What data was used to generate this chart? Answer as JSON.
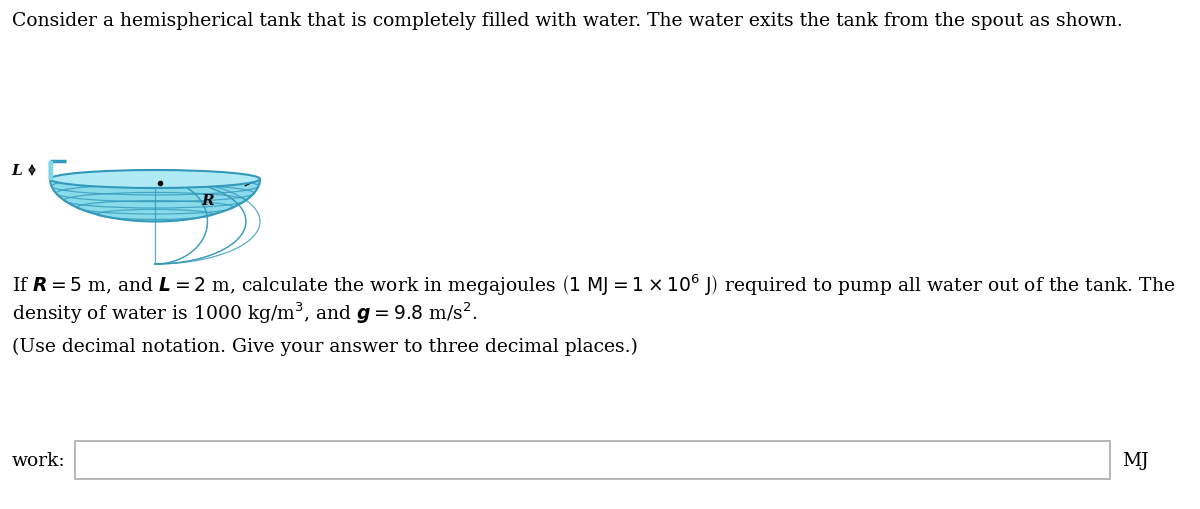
{
  "title_text": "Consider a hemispherical tank that is completely filled with water. The water exits the tank from the spout as shown.",
  "problem_line1": "If $\\boldsymbol{R} = 5$ m, and $\\boldsymbol{L} = 2$ m, calculate the work in megajoules $\\left(1\\text{ MJ} = 1 \\times 10^6\\text{ J}\\right)$ required to pump all water out of the tank. The",
  "problem_line2": "density of water is 1000 kg/m$^3$, and $\\boldsymbol{g} = 9.8$ m/s$^2$.",
  "notation_text": "(Use decimal notation. Give your answer to three decimal places.)",
  "work_label": "work:",
  "unit_label": "MJ",
  "bg_color": "#ffffff",
  "text_color": "#000000",
  "box_edge_color": "#aaaaaa",
  "tank_fill": "#7dd8e8",
  "tank_edge": "#3399bb",
  "tank_light": "#b0eaf5",
  "font_size_main": 13.5,
  "font_size_label": 13.5
}
